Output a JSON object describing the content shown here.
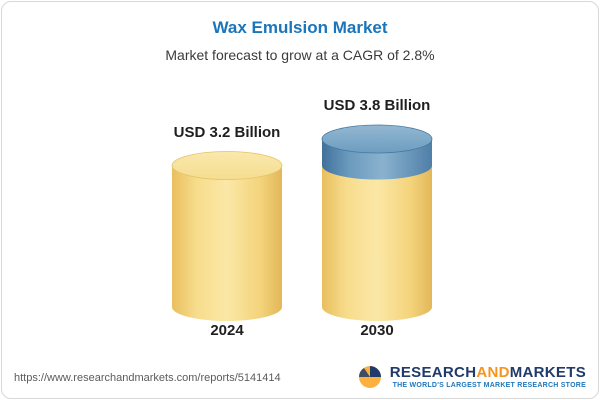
{
  "header": {
    "title": "Wax Emulsion Market",
    "subtitle": "Market forecast to grow at a CAGR of 2.8%"
  },
  "chart_data": {
    "type": "bar",
    "bar_style": "3d-cylinder",
    "categories": [
      "2024",
      "2030"
    ],
    "values": [
      3.2,
      3.8
    ],
    "bar_labels": [
      "USD 3.2 Billion",
      "USD 3.8 Billion"
    ],
    "unit": "USD Billion",
    "cagr": "2.8%",
    "legend_position": "none",
    "grid": false,
    "colors": {
      "base_segment_yellow": "#F6D77E",
      "growth_segment_blue": "#6F9EC1",
      "title_blue": "#1B75BB"
    }
  },
  "footer": {
    "url": "https://www.researchandmarkets.com/reports/5141414",
    "logo": {
      "word1": "RESEARCH",
      "word2": "AND",
      "word3": "MARKETS",
      "tagline": "THE WORLD'S LARGEST MARKET RESEARCH STORE",
      "colors": {
        "navy": "#203A69",
        "orange": "#F7941E",
        "tagline_blue": "#2078BC"
      }
    }
  }
}
